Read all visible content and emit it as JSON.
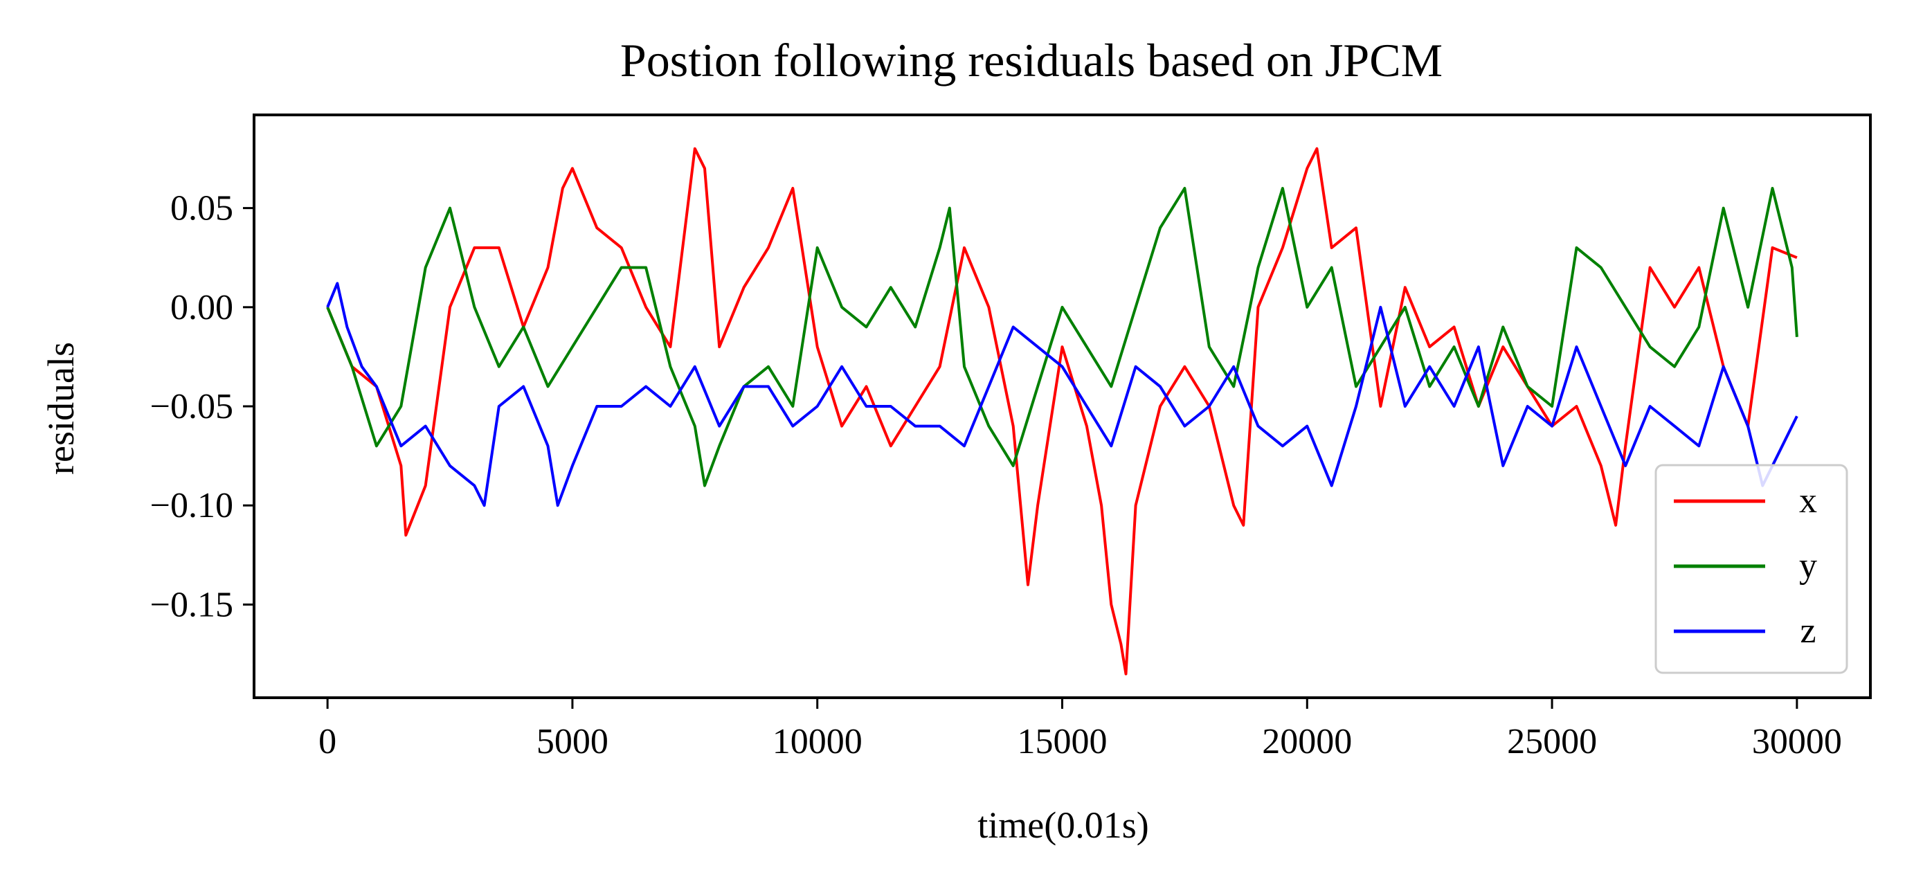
{
  "chart_data": {
    "type": "line",
    "title": "Postion following residuals based on JPCM",
    "xlabel": "time(0.01s)",
    "ylabel": "residuals",
    "xlim": [
      -1500,
      31500
    ],
    "ylim": [
      -0.197,
      0.097
    ],
    "xticks": [
      0,
      5000,
      10000,
      15000,
      20000,
      25000,
      30000
    ],
    "xtick_labels": [
      "0",
      "5000",
      "10000",
      "15000",
      "20000",
      "25000",
      "30000"
    ],
    "yticks": [
      0.05,
      0.0,
      -0.05,
      -0.1,
      -0.15
    ],
    "ytick_labels": [
      "0.05",
      "0.00",
      "−0.05",
      "−0.10",
      "−0.15"
    ],
    "grid": false,
    "legend": "lower-right",
    "series": [
      {
        "name": "x",
        "color": "#ff0000",
        "x": [
          0,
          500,
          1000,
          1500,
          1600,
          2000,
          2500,
          3000,
          3500,
          4000,
          4500,
          4800,
          5000,
          5500,
          6000,
          6500,
          7000,
          7300,
          7500,
          7700,
          8000,
          8500,
          9000,
          9500,
          10000,
          10500,
          11000,
          11500,
          12000,
          12500,
          13000,
          13500,
          14000,
          14300,
          14500,
          15000,
          15500,
          15800,
          16000,
          16200,
          16300,
          16500,
          17000,
          17500,
          18000,
          18500,
          18700,
          19000,
          19500,
          20000,
          20200,
          20500,
          21000,
          21500,
          22000,
          22500,
          23000,
          23500,
          24000,
          24500,
          25000,
          25500,
          26000,
          26300,
          26500,
          27000,
          27500,
          28000,
          28500,
          29000,
          29500,
          30000
        ],
        "y": [
          0,
          -0.03,
          -0.04,
          -0.08,
          -0.115,
          -0.09,
          0.0,
          0.03,
          0.03,
          -0.01,
          0.02,
          0.06,
          0.07,
          0.04,
          0.03,
          0.0,
          -0.02,
          0.04,
          0.08,
          0.07,
          -0.02,
          0.01,
          0.03,
          0.06,
          -0.02,
          -0.06,
          -0.04,
          -0.07,
          -0.05,
          -0.03,
          0.03,
          0.0,
          -0.06,
          -0.14,
          -0.1,
          -0.02,
          -0.06,
          -0.1,
          -0.15,
          -0.17,
          -0.185,
          -0.1,
          -0.05,
          -0.03,
          -0.05,
          -0.1,
          -0.11,
          0.0,
          0.03,
          0.07,
          0.08,
          0.03,
          0.04,
          -0.05,
          0.01,
          -0.02,
          -0.01,
          -0.05,
          -0.02,
          -0.04,
          -0.06,
          -0.05,
          -0.08,
          -0.11,
          -0.07,
          0.02,
          0.0,
          0.02,
          -0.03,
          -0.06,
          0.03,
          0.025
        ]
      },
      {
        "name": "y",
        "color": "#008000",
        "x": [
          0,
          500,
          1000,
          1500,
          2000,
          2500,
          3000,
          3500,
          4000,
          4500,
          5000,
          5500,
          6000,
          6500,
          7000,
          7500,
          7700,
          8000,
          8500,
          9000,
          9500,
          10000,
          10500,
          11000,
          11500,
          12000,
          12500,
          12700,
          13000,
          13500,
          14000,
          14500,
          15000,
          15500,
          16000,
          16500,
          17000,
          17500,
          18000,
          18500,
          19000,
          19500,
          20000,
          20500,
          21000,
          21500,
          22000,
          22500,
          23000,
          23500,
          24000,
          24500,
          25000,
          25500,
          26000,
          26500,
          27000,
          27500,
          28000,
          28500,
          29000,
          29500,
          29900,
          30000
        ],
        "y": [
          0,
          -0.03,
          -0.07,
          -0.05,
          0.02,
          0.05,
          0.0,
          -0.03,
          -0.01,
          -0.04,
          -0.02,
          0.0,
          0.02,
          0.02,
          -0.03,
          -0.06,
          -0.09,
          -0.07,
          -0.04,
          -0.03,
          -0.05,
          0.03,
          0.0,
          -0.01,
          0.01,
          -0.01,
          0.03,
          0.05,
          -0.03,
          -0.06,
          -0.08,
          -0.04,
          0.0,
          -0.02,
          -0.04,
          0.0,
          0.04,
          0.06,
          -0.02,
          -0.04,
          0.02,
          0.06,
          0.0,
          0.02,
          -0.04,
          -0.02,
          0.0,
          -0.04,
          -0.02,
          -0.05,
          -0.01,
          -0.04,
          -0.05,
          0.03,
          0.02,
          0.0,
          -0.02,
          -0.03,
          -0.01,
          0.05,
          0.0,
          0.06,
          0.02,
          -0.015
        ]
      },
      {
        "name": "z",
        "color": "#0000ff",
        "x": [
          0,
          200,
          400,
          700,
          1000,
          1500,
          2000,
          2500,
          3000,
          3200,
          3500,
          4000,
          4500,
          4700,
          5000,
          5500,
          6000,
          6500,
          7000,
          7500,
          8000,
          8500,
          9000,
          9500,
          10000,
          10500,
          11000,
          11500,
          12000,
          12500,
          13000,
          13500,
          14000,
          14500,
          15000,
          15500,
          16000,
          16500,
          17000,
          17500,
          18000,
          18500,
          19000,
          19500,
          20000,
          20500,
          21000,
          21500,
          22000,
          22500,
          23000,
          23500,
          24000,
          24500,
          25000,
          25500,
          26000,
          26500,
          27000,
          27500,
          28000,
          28500,
          29000,
          29300,
          29500,
          30000
        ],
        "y": [
          0,
          0.012,
          -0.01,
          -0.03,
          -0.04,
          -0.07,
          -0.06,
          -0.08,
          -0.09,
          -0.1,
          -0.05,
          -0.04,
          -0.07,
          -0.1,
          -0.08,
          -0.05,
          -0.05,
          -0.04,
          -0.05,
          -0.03,
          -0.06,
          -0.04,
          -0.04,
          -0.06,
          -0.05,
          -0.03,
          -0.05,
          -0.05,
          -0.06,
          -0.06,
          -0.07,
          -0.04,
          -0.01,
          -0.02,
          -0.03,
          -0.05,
          -0.07,
          -0.03,
          -0.04,
          -0.06,
          -0.05,
          -0.03,
          -0.06,
          -0.07,
          -0.06,
          -0.09,
          -0.05,
          -0.0,
          -0.05,
          -0.03,
          -0.05,
          -0.02,
          -0.08,
          -0.05,
          -0.06,
          -0.02,
          -0.05,
          -0.08,
          -0.05,
          -0.06,
          -0.07,
          -0.03,
          -0.06,
          -0.09,
          -0.08,
          -0.055
        ]
      }
    ]
  }
}
